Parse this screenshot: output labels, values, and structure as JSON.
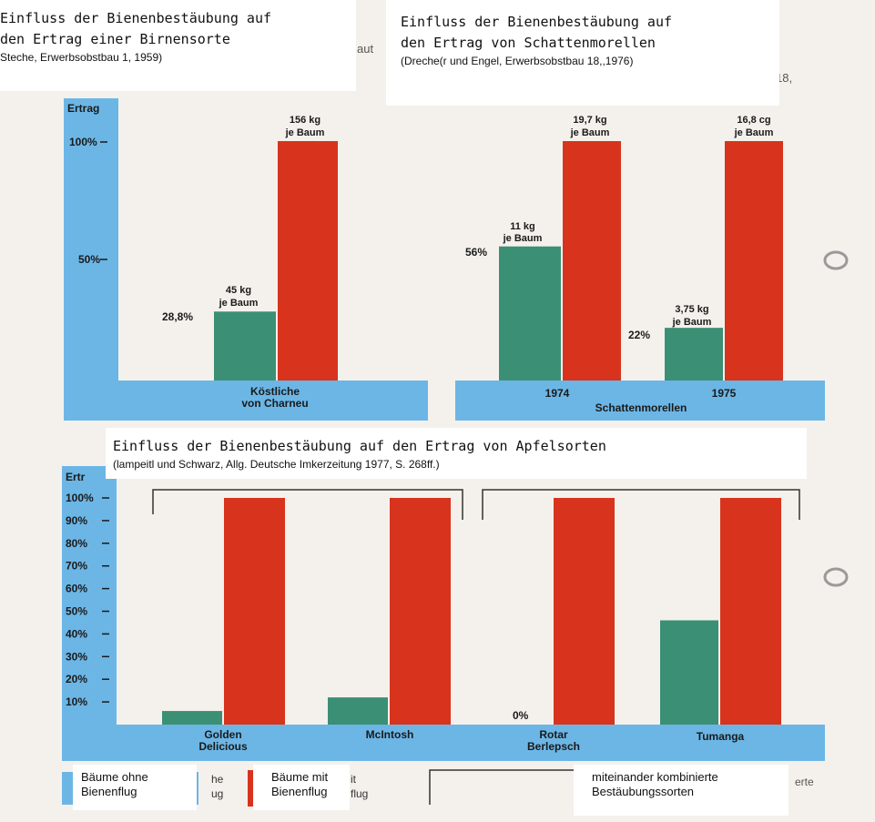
{
  "captions": {
    "top_left": {
      "title_line1": "Einfluss der Bienenbestäubung auf",
      "title_line2": "den Ertrag einer Birnensorte",
      "source": "Steche, Erwerbsobstbau 1, 1959)"
    },
    "top_right": {
      "title_line1": "Einfluss der Bienenbestäubung auf",
      "title_line2": "den Ertrag von Schattenmorellen",
      "source": "(Dreche(r und Engel, Erwerbsobstbau 18,,1976)"
    },
    "bottom": {
      "title": "Einfluss der Bienenbestäubung auf den Ertrag von Apfelsorten",
      "source": "(lampeitl und Schwarz, Allg. Deutsche Imkerzeitung 1977, S. 268ff.)"
    }
  },
  "background_fragments": {
    "aut": "aut",
    "n18": "18,",
    "erte": "erte",
    "he": "he",
    "ug1": "ug",
    "it": "it",
    "flug": "flug"
  },
  "legend": {
    "without_line1": "Bäume ohne",
    "without_line2": "Bienenflug",
    "with_line1": "Bäume mit",
    "with_line2": "Bienenflug",
    "combined_line1": "miteinander kombinierte",
    "combined_line2": "Bestäubungssorten"
  },
  "colors": {
    "axis_blue": "#6cb6e6",
    "green": "#3b8f75",
    "red": "#d8331d",
    "background": "#f4f1ec",
    "caption_bg": "#ffffff"
  },
  "chart_data": [
    {
      "type": "bar",
      "ylabel": "Ertrag",
      "yticks": [
        "100%",
        "50%"
      ],
      "categories": [
        "Köstliche von Charneu"
      ],
      "category_label_line1": "Köstliche",
      "category_label_line2": "von Charneu",
      "series": [
        {
          "values": [
            28.8
          ],
          "color": "#3b8f75"
        },
        {
          "values": [
            100
          ],
          "color": "#d8331d"
        }
      ],
      "data_labels": {
        "green_pct": "28,8%",
        "green_kg_line1": "45 kg",
        "green_kg_line2": "je Baum",
        "red_kg_line1": "156 kg",
        "red_kg_line2": "je Baum"
      }
    },
    {
      "type": "bar",
      "categories": [
        "1974",
        "1975"
      ],
      "group_label": "Schattenmorellen",
      "series": [
        {
          "values": [
            56,
            22
          ],
          "color": "#3b8f75"
        },
        {
          "values": [
            100,
            100
          ],
          "color": "#d8331d"
        }
      ],
      "data_labels": {
        "g1_pct": "56%",
        "g1_kg_line1": "11 kg",
        "g1_kg_line2": "je Baum",
        "r1_kg_line1": "19,7 kg",
        "r1_kg_line2": "je Baum",
        "g2_pct": "22%",
        "g2_kg_line1": "3,75 kg",
        "g2_kg_line2": "je Baum",
        "r2_kg_line1": "16,8 cg",
        "r2_kg_line2": "je Baum"
      }
    },
    {
      "type": "bar",
      "ylabel": "Ertr",
      "ylim": [
        0,
        100
      ],
      "yticks": [
        "100%",
        "90%",
        "80%",
        "70%",
        "60%",
        "50%",
        "40%",
        "30%",
        "20%",
        "10%"
      ],
      "categories": [
        "Golden Delicious",
        "McIntosh",
        "Roter Berlepsch",
        "Tumanga"
      ],
      "category_labels": [
        {
          "line1": "Golden",
          "line2": "Delicious"
        },
        {
          "line1": "McIntosh",
          "line2": ""
        },
        {
          "line1": "Rotar",
          "line2": "Berlepsch"
        },
        {
          "line1": "Tumanga",
          "line2": ""
        }
      ],
      "series": [
        {
          "values": [
            6,
            12,
            0,
            46
          ],
          "color": "#3b8f75"
        },
        {
          "values": [
            100,
            100,
            100,
            100
          ],
          "color": "#d8331d"
        }
      ],
      "data_labels": {
        "zero": "0%"
      }
    }
  ]
}
